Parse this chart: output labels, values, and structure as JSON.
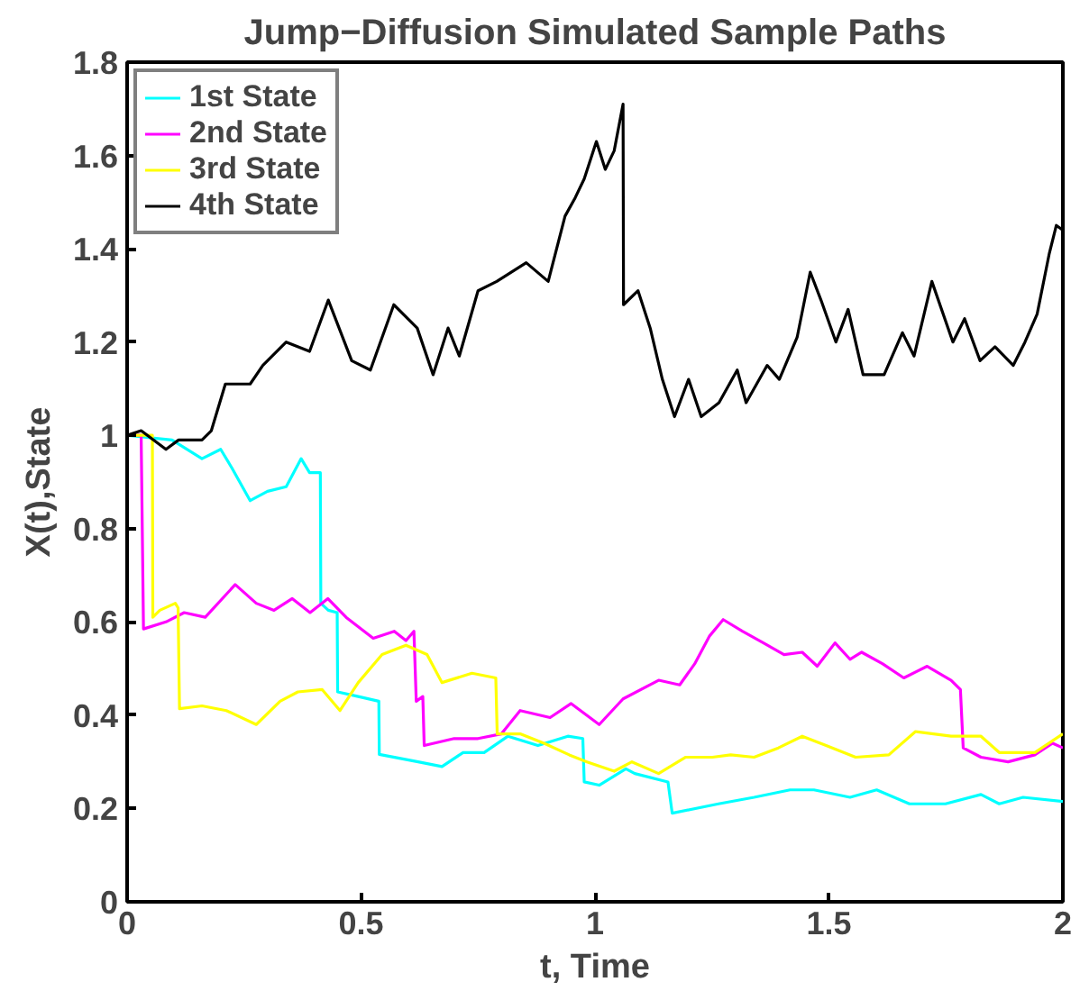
{
  "chart_data": {
    "type": "line",
    "title": "Jump−Diffusion Simulated Sample Paths",
    "xlabel": "t, Time",
    "ylabel": "X(t),State",
    "xlim": [
      0,
      2
    ],
    "ylim": [
      0,
      1.8
    ],
    "xticks": [
      0,
      0.5,
      1,
      1.5,
      2
    ],
    "yticks": [
      0,
      0.2,
      0.4,
      0.6,
      0.8,
      1,
      1.2,
      1.4,
      1.6,
      1.8
    ],
    "grid": false,
    "legend": "top left",
    "line_style": "solid",
    "marker": "none",
    "series": [
      {
        "name": "1st State",
        "color": "#00ffff",
        "x": [
          0,
          0.096,
          0.16,
          0.2,
          0.224,
          0.263,
          0.3,
          0.34,
          0.372,
          0.39,
          0.413,
          0.414,
          0.43,
          0.449,
          0.45,
          0.494,
          0.538,
          0.539,
          0.622,
          0.673,
          0.718,
          0.763,
          0.814,
          0.878,
          0.942,
          0.974,
          0.977,
          1.009,
          1.066,
          1.085,
          1.156,
          1.165,
          1.264,
          1.34,
          1.417,
          1.468,
          1.545,
          1.602,
          1.672,
          1.749,
          1.825,
          1.864,
          1.915,
          2.0
        ],
        "values": [
          1.0,
          0.99,
          0.95,
          0.97,
          0.93,
          0.86,
          0.88,
          0.89,
          0.95,
          0.92,
          0.92,
          0.64,
          0.625,
          0.62,
          0.45,
          0.44,
          0.43,
          0.316,
          0.3,
          0.29,
          0.32,
          0.32,
          0.355,
          0.335,
          0.355,
          0.35,
          0.257,
          0.25,
          0.285,
          0.275,
          0.257,
          0.19,
          0.21,
          0.224,
          0.24,
          0.24,
          0.224,
          0.24,
          0.21,
          0.21,
          0.23,
          0.21,
          0.224,
          0.215
        ]
      },
      {
        "name": "2nd State",
        "color": "#ff00ff",
        "x": [
          0,
          0.03,
          0.035,
          0.083,
          0.122,
          0.167,
          0.231,
          0.276,
          0.314,
          0.353,
          0.391,
          0.429,
          0.468,
          0.526,
          0.571,
          0.596,
          0.613,
          0.618,
          0.632,
          0.635,
          0.699,
          0.75,
          0.8,
          0.84,
          0.904,
          0.949,
          1.009,
          1.06,
          1.136,
          1.181,
          1.213,
          1.245,
          1.274,
          1.315,
          1.36,
          1.404,
          1.443,
          1.475,
          1.513,
          1.545,
          1.57,
          1.615,
          1.66,
          1.71,
          1.761,
          1.781,
          1.787,
          1.825,
          1.883,
          1.94,
          1.978,
          2.0
        ],
        "values": [
          1.0,
          1.0,
          0.585,
          0.6,
          0.62,
          0.61,
          0.68,
          0.64,
          0.625,
          0.65,
          0.62,
          0.65,
          0.61,
          0.565,
          0.58,
          0.56,
          0.58,
          0.43,
          0.44,
          0.335,
          0.35,
          0.35,
          0.36,
          0.41,
          0.395,
          0.425,
          0.38,
          0.435,
          0.475,
          0.465,
          0.51,
          0.57,
          0.605,
          0.58,
          0.555,
          0.53,
          0.535,
          0.505,
          0.555,
          0.52,
          0.535,
          0.51,
          0.48,
          0.505,
          0.475,
          0.455,
          0.33,
          0.31,
          0.3,
          0.315,
          0.34,
          0.33
        ]
      },
      {
        "name": "3rd State",
        "color": "#ffff00",
        "x": [
          0,
          0.045,
          0.054,
          0.055,
          0.07,
          0.103,
          0.109,
          0.112,
          0.16,
          0.212,
          0.276,
          0.327,
          0.365,
          0.417,
          0.455,
          0.494,
          0.545,
          0.596,
          0.641,
          0.673,
          0.737,
          0.788,
          0.791,
          0.84,
          0.891,
          0.945,
          0.983,
          1.041,
          1.079,
          1.136,
          1.194,
          1.251,
          1.29,
          1.34,
          1.392,
          1.443,
          1.494,
          1.557,
          1.628,
          1.685,
          1.761,
          1.825,
          1.864,
          1.94,
          2.0
        ],
        "values": [
          1.0,
          1.0,
          1.0,
          0.61,
          0.625,
          0.64,
          0.63,
          0.414,
          0.42,
          0.41,
          0.38,
          0.43,
          0.45,
          0.455,
          0.41,
          0.47,
          0.53,
          0.55,
          0.53,
          0.47,
          0.49,
          0.48,
          0.36,
          0.36,
          0.34,
          0.315,
          0.3,
          0.28,
          0.3,
          0.275,
          0.31,
          0.31,
          0.315,
          0.31,
          0.33,
          0.355,
          0.335,
          0.31,
          0.315,
          0.365,
          0.355,
          0.355,
          0.32,
          0.32,
          0.36
        ]
      },
      {
        "name": "4th State",
        "color": "#000000",
        "x": [
          0,
          0.03,
          0.083,
          0.11,
          0.16,
          0.18,
          0.21,
          0.263,
          0.29,
          0.34,
          0.39,
          0.43,
          0.48,
          0.52,
          0.57,
          0.62,
          0.654,
          0.686,
          0.71,
          0.75,
          0.79,
          0.853,
          0.9,
          0.936,
          0.958,
          0.977,
          1.003,
          1.022,
          1.041,
          1.06,
          1.061,
          1.092,
          1.118,
          1.144,
          1.17,
          1.2,
          1.227,
          1.265,
          1.304,
          1.323,
          1.368,
          1.394,
          1.432,
          1.46,
          1.483,
          1.515,
          1.541,
          1.573,
          1.618,
          1.657,
          1.682,
          1.72,
          1.765,
          1.79,
          1.823,
          1.855,
          1.894,
          1.919,
          1.945,
          1.971,
          1.986,
          2.0
        ],
        "values": [
          1.0,
          1.01,
          0.97,
          0.99,
          0.99,
          1.01,
          1.11,
          1.11,
          1.15,
          1.2,
          1.18,
          1.29,
          1.16,
          1.14,
          1.28,
          1.23,
          1.13,
          1.23,
          1.17,
          1.31,
          1.33,
          1.37,
          1.33,
          1.47,
          1.51,
          1.55,
          1.63,
          1.57,
          1.61,
          1.71,
          1.28,
          1.31,
          1.23,
          1.12,
          1.04,
          1.12,
          1.04,
          1.07,
          1.14,
          1.07,
          1.15,
          1.12,
          1.21,
          1.35,
          1.29,
          1.2,
          1.27,
          1.13,
          1.13,
          1.22,
          1.17,
          1.33,
          1.2,
          1.25,
          1.16,
          1.19,
          1.15,
          1.2,
          1.26,
          1.39,
          1.45,
          1.44
        ]
      }
    ]
  }
}
